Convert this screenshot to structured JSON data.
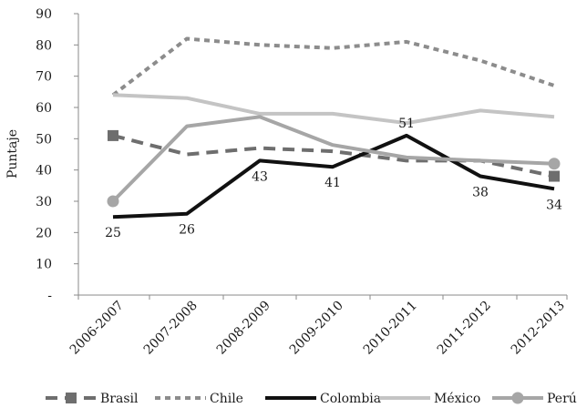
{
  "chart_data": {
    "type": "line",
    "title": "",
    "xlabel": "",
    "ylabel": "Puntaje",
    "ylim": [
      0,
      90
    ],
    "yticks": [
      {
        "value": 0,
        "label": "-"
      },
      {
        "value": 10,
        "label": "10"
      },
      {
        "value": 20,
        "label": "20"
      },
      {
        "value": 30,
        "label": "30"
      },
      {
        "value": 40,
        "label": "40"
      },
      {
        "value": 50,
        "label": "50"
      },
      {
        "value": 60,
        "label": "60"
      },
      {
        "value": 70,
        "label": "70"
      },
      {
        "value": 80,
        "label": "80"
      },
      {
        "value": 90,
        "label": "90"
      }
    ],
    "categories": [
      "2006-2007",
      "2007-2008",
      "2008-2009",
      "2009-2010",
      "2010-2011",
      "2011-2012",
      "2012-2013"
    ],
    "grid": false,
    "legend_position": "bottom",
    "series": [
      {
        "name": "Brasil",
        "values": [
          51,
          45,
          47,
          46,
          43,
          43,
          38
        ],
        "color": "#6e6e6e",
        "style": "dashed",
        "marker": "square"
      },
      {
        "name": "Chile",
        "values": [
          64,
          82,
          80,
          79,
          81,
          75,
          67
        ],
        "color": "#8c8c8c",
        "style": "dotted",
        "marker": "none"
      },
      {
        "name": "Colombia",
        "values": [
          25,
          26,
          43,
          41,
          51,
          38,
          34
        ],
        "color": "#111111",
        "style": "solid",
        "marker": "none"
      },
      {
        "name": "México",
        "values": [
          64,
          63,
          58,
          58,
          55,
          59,
          57
        ],
        "color": "#c4c4c4",
        "style": "solid",
        "marker": "none"
      },
      {
        "name": "Perú",
        "values": [
          30,
          54,
          57,
          48,
          44,
          43,
          42
        ],
        "color": "#a6a6a6",
        "style": "solid",
        "marker": "circle"
      }
    ],
    "data_labels": {
      "series": "Colombia",
      "labels": [
        "25",
        "26",
        "43",
        "41",
        "51",
        "38",
        "34"
      ],
      "placement": [
        "below",
        "below",
        "below",
        "below",
        "above",
        "below",
        "below"
      ]
    }
  }
}
